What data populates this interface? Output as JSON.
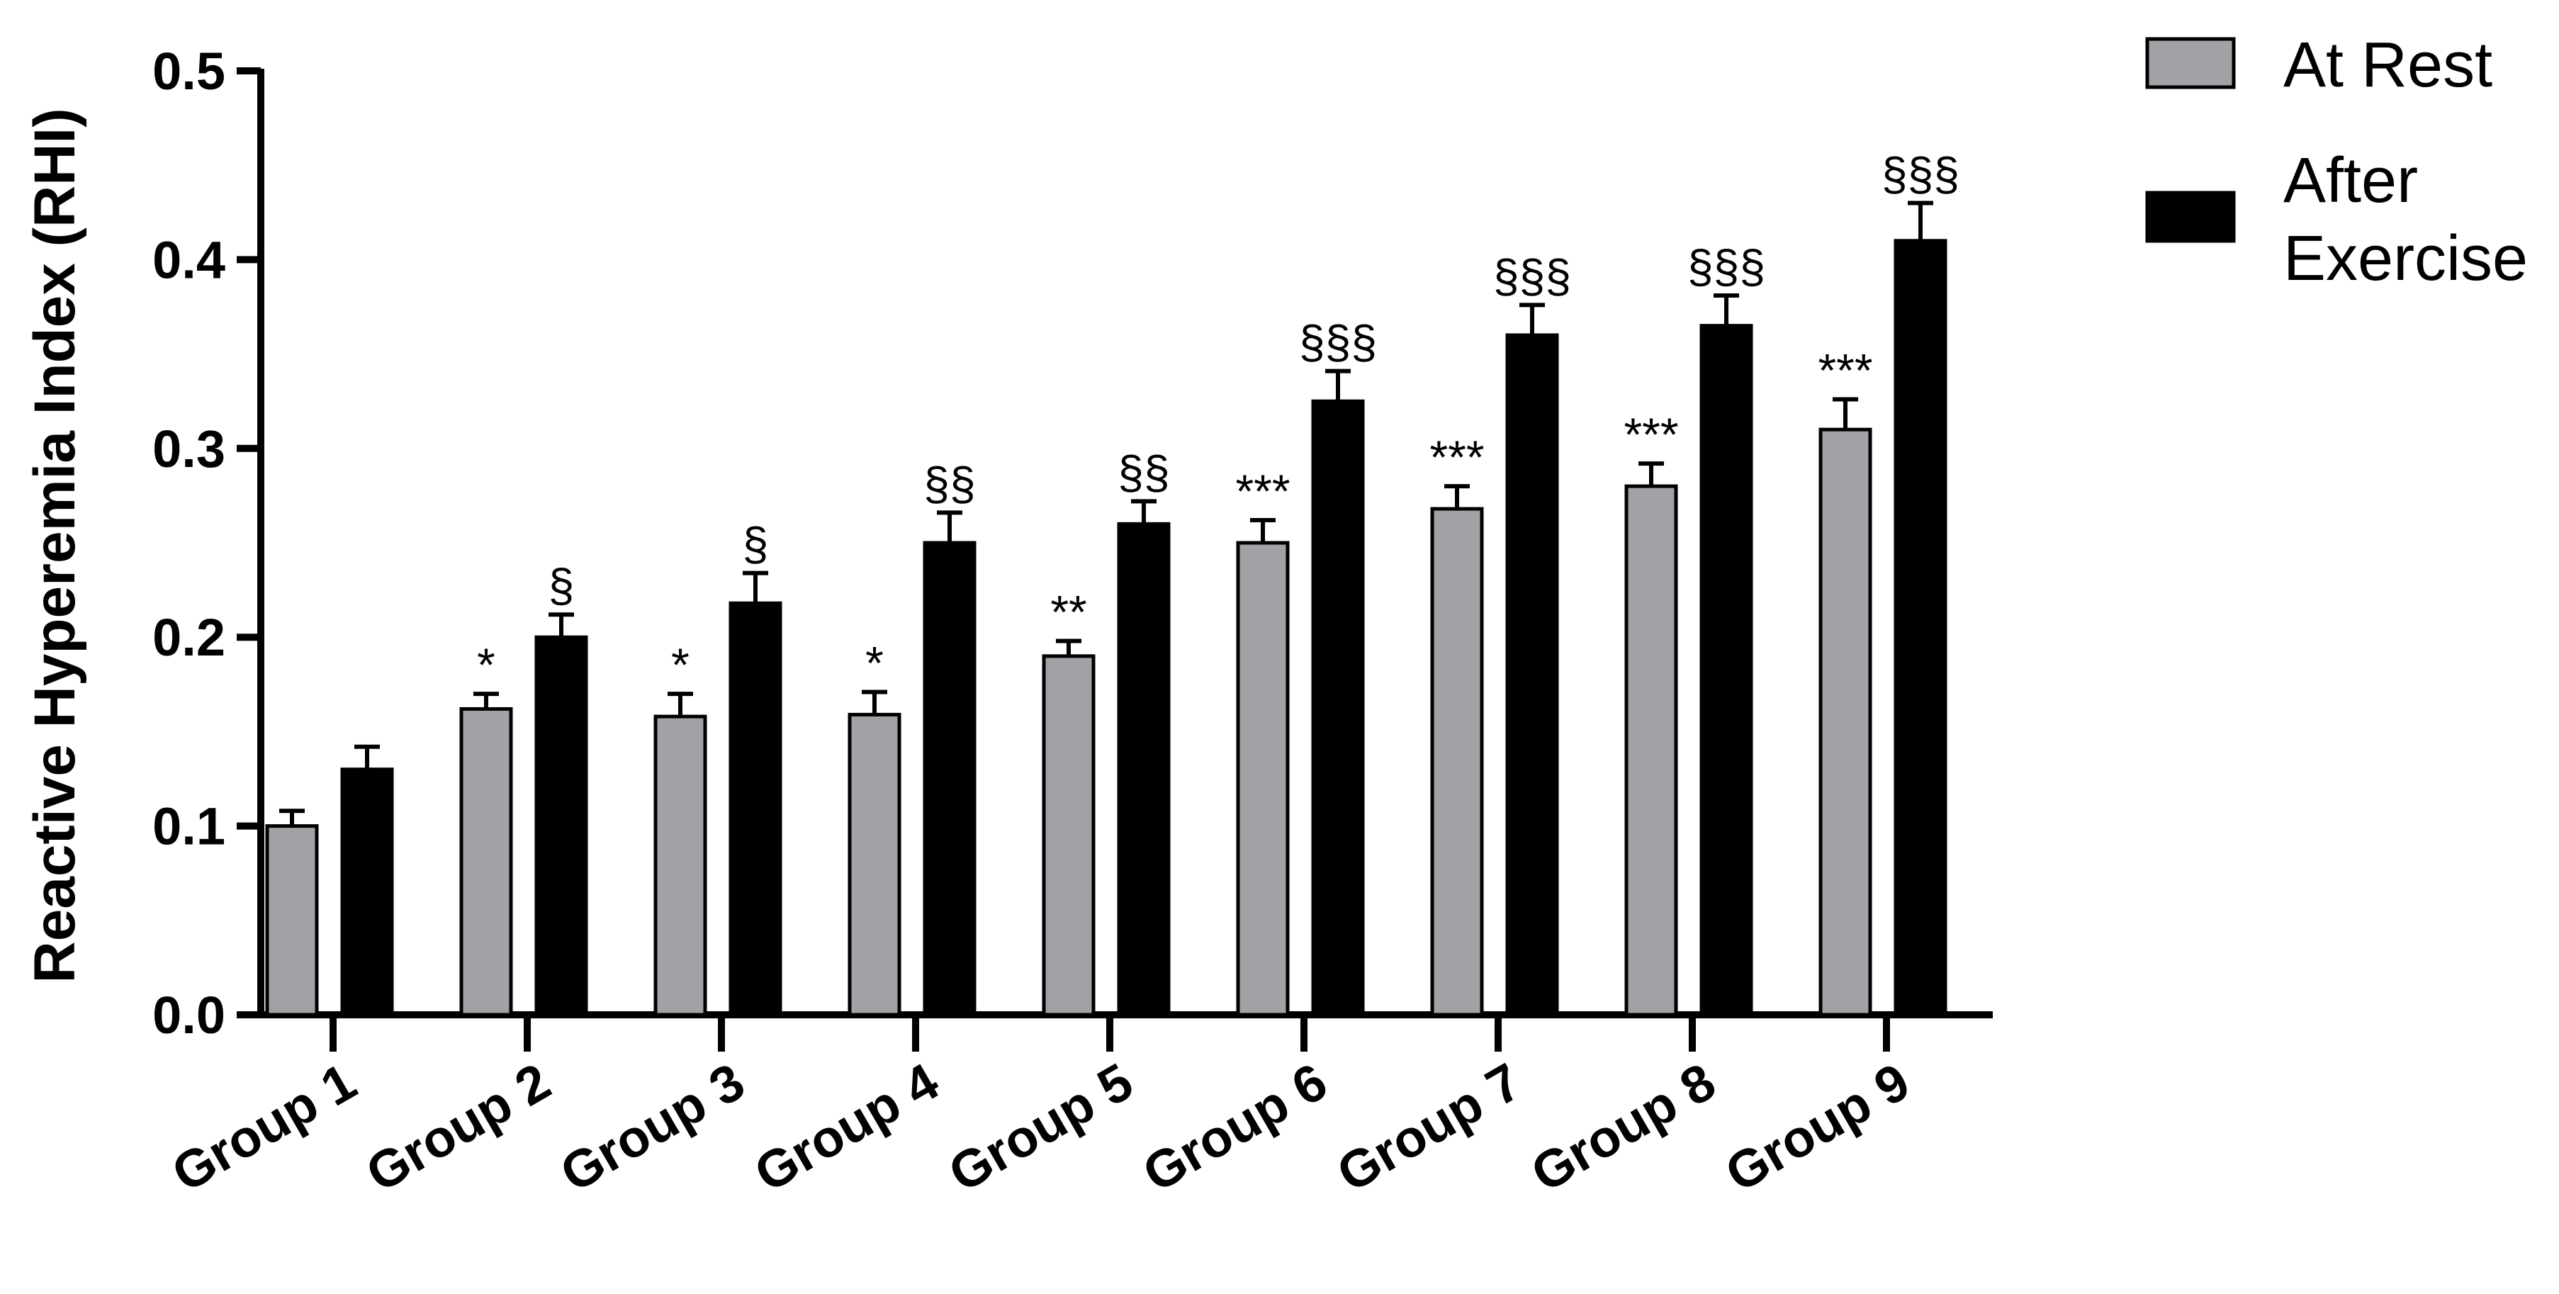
{
  "chart_data": {
    "type": "bar",
    "title": "",
    "xlabel": "",
    "ylabel": "Reactive Hyperemia Index (RHI)",
    "ylim": [
      0,
      0.5
    ],
    "yticks": [
      "0.0",
      "0.1",
      "0.2",
      "0.3",
      "0.4",
      "0.5"
    ],
    "grid": false,
    "legend_position": "top-right",
    "categories": [
      "Group 1",
      "Group 2",
      "Group 3",
      "Group 4",
      "Group 5",
      "Group 6",
      "Group 7",
      "Group 8",
      "Group 9"
    ],
    "series": [
      {
        "name": "At Rest",
        "color": "#a2a2a6",
        "values": [
          0.1,
          0.162,
          0.158,
          0.159,
          0.19,
          0.25,
          0.268,
          0.28,
          0.31
        ],
        "errors": [
          0.008,
          0.008,
          0.012,
          0.012,
          0.008,
          0.012,
          0.012,
          0.012,
          0.016
        ],
        "annotations": [
          "",
          "*",
          "*",
          "*",
          "**",
          "***",
          "***",
          "***",
          "***"
        ]
      },
      {
        "name": "After Exercise",
        "color": "#000000",
        "values": [
          0.13,
          0.2,
          0.218,
          0.25,
          0.26,
          0.325,
          0.36,
          0.365,
          0.41
        ],
        "errors": [
          0.012,
          0.012,
          0.016,
          0.016,
          0.012,
          0.016,
          0.016,
          0.016,
          0.02
        ],
        "annotations": [
          "",
          "§",
          "§",
          "§§",
          "§§",
          "§§§",
          "§§§",
          "§§§",
          "§§§"
        ]
      }
    ]
  }
}
